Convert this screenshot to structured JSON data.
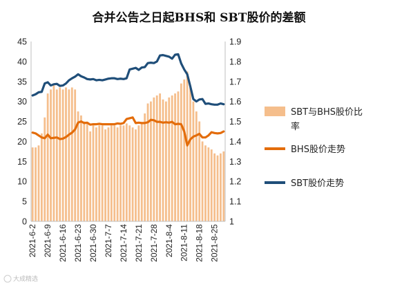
{
  "chart_data": {
    "type": "bar+line",
    "title": "合并公告之日起BHS和 SBT股价的差额",
    "left_axis": {
      "min": 0,
      "max": 45,
      "ticks": [
        "0",
        "5",
        "10",
        "15",
        "20",
        "25",
        "30",
        "35",
        "40",
        "45"
      ]
    },
    "right_axis": {
      "min": 1,
      "max": 1.9,
      "ticks": [
        "1",
        "1.1",
        "1.2",
        "1.3",
        "1.4",
        "1.5",
        "1.6",
        "1.7",
        "1.8",
        "1.9"
      ]
    },
    "x_tick_labels": [
      "2021-6-2",
      "2021-6-9",
      "2021-6-16",
      "2021-6-23",
      "2021-6-30",
      "2021-7-7",
      "2021-7-14",
      "2021-7-21",
      "2021-7-28",
      "2021-8-4",
      "2021-8-11",
      "2021-8-18",
      "2021-8-25"
    ],
    "n_days": 64,
    "grid": "none",
    "legend_position": "right",
    "series": [
      {
        "name": "SBT与BHS股价比率",
        "kind": "bar",
        "axis": "right",
        "color": "#F5BE8C",
        "values": [
          1.37,
          1.37,
          1.38,
          1.44,
          1.52,
          1.64,
          1.66,
          1.68,
          1.66,
          1.67,
          1.66,
          1.67,
          1.66,
          1.67,
          1.66,
          1.55,
          1.53,
          1.5,
          1.49,
          1.45,
          1.48,
          1.47,
          1.48,
          1.48,
          1.46,
          1.47,
          1.48,
          1.48,
          1.47,
          1.48,
          1.48,
          1.49,
          1.48,
          1.47,
          1.46,
          1.48,
          1.49,
          1.54,
          1.59,
          1.6,
          1.62,
          1.63,
          1.64,
          1.61,
          1.6,
          1.62,
          1.63,
          1.64,
          1.65,
          1.69,
          1.71,
          1.75,
          1.67,
          1.6,
          1.55,
          1.5,
          1.4,
          1.38,
          1.37,
          1.36,
          1.34,
          1.33,
          1.34,
          1.35
        ]
      },
      {
        "name": "BHS股价走势",
        "kind": "line",
        "axis": "left",
        "color": "#E36C0A",
        "values": [
          22.2,
          22.0,
          21.5,
          21.0,
          20.8,
          21.7,
          20.8,
          20.9,
          21.0,
          20.6,
          20.7,
          21.1,
          21.7,
          22.2,
          23.0,
          24.7,
          25.0,
          24.6,
          24.7,
          24.2,
          24.3,
          24.3,
          24.4,
          24.3,
          24.3,
          24.3,
          24.3,
          24.3,
          24.5,
          24.4,
          24.6,
          25.6,
          25.8,
          26.0,
          24.6,
          24.7,
          24.6,
          24.6,
          24.8,
          25.4,
          25.3,
          24.9,
          24.9,
          24.7,
          24.8,
          24.7,
          24.9,
          24.3,
          24.4,
          24.3,
          22.5,
          19.0,
          20.5,
          21.2,
          21.5,
          21.9,
          21.0,
          21.0,
          21.5,
          22.3,
          22.1,
          22.0,
          22.1,
          22.5
        ]
      },
      {
        "name": "SBT股价走势",
        "kind": "line",
        "axis": "left",
        "color": "#1F4E79",
        "values": [
          31.5,
          31.8,
          32.3,
          32.4,
          34.5,
          34.8,
          34.0,
          34.3,
          34.4,
          33.9,
          34.0,
          34.5,
          35.3,
          35.8,
          36.2,
          36.8,
          36.3,
          36.0,
          35.6,
          35.5,
          35.6,
          35.3,
          35.4,
          35.3,
          35.5,
          35.7,
          35.8,
          35.8,
          35.6,
          35.7,
          35.6,
          35.8,
          38.0,
          38.2,
          38.4,
          37.9,
          38.5,
          38.6,
          39.6,
          39.7,
          39.6,
          40.0,
          41.5,
          41.6,
          41.4,
          41.2,
          40.7,
          41.7,
          41.8,
          39.5,
          38.0,
          36.8,
          33.8,
          30.6,
          30.0,
          30.5,
          30.6,
          29.4,
          29.5,
          29.3,
          29.2,
          29.2,
          29.5,
          29.3
        ]
      }
    ]
  },
  "watermark": "大成精选"
}
